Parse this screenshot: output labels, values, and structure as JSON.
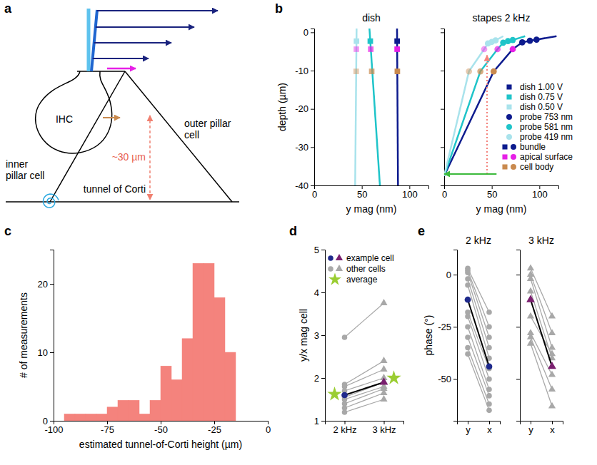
{
  "panel_labels": [
    "a",
    "b",
    "c",
    "d",
    "e"
  ],
  "diagram": {
    "ihc": "IHC",
    "outer_pillar": "outer pillar cell",
    "inner_pillar": "inner pillar cell",
    "tunnel": "tunnel of Corti",
    "height": "~30 µm"
  },
  "chart_data": [
    {
      "type": "line",
      "title": "dish",
      "xlabel": "y mag (nm)",
      "ylabel": "depth (µm)",
      "xlim": [
        0,
        120
      ],
      "xticks": [
        0,
        50,
        100
      ],
      "ylim": [
        -40,
        1
      ],
      "yticks": [
        -40,
        -30,
        -20,
        -10,
        0
      ],
      "marker": "square",
      "series": [
        {
          "name": "dish 1.00 V",
          "color": "#0d1b8e",
          "line": {
            "x": [
              87,
              88
            ],
            "y": [
              1,
              -40
            ]
          },
          "points": [
            {
              "x": [
                87.1
              ],
              "y": [
                -2.3
              ]
            },
            {
              "x": [
                87.1
              ],
              "y": [
                -4.4
              ]
            },
            {
              "x": [
                87.3
              ],
              "y": [
                -10.2
              ]
            }
          ]
        },
        {
          "name": "dish 0.75 V",
          "color": "#1fc4c9",
          "line": {
            "x": [
              58,
              69
            ],
            "y": [
              1,
              -40
            ]
          },
          "points": [
            {
              "x": [
                58.9
              ],
              "y": [
                -2.3
              ]
            },
            {
              "x": [
                59.4
              ],
              "y": [
                -4.4
              ]
            },
            {
              "x": [
                60.4
              ],
              "y": [
                -10.2
              ]
            }
          ]
        },
        {
          "name": "dish 0.50 V",
          "color": "#a9e3ec",
          "line": {
            "x": [
              44.5,
              43
            ],
            "y": [
              1,
              -40
            ]
          },
          "points": [
            {
              "x": [
                44.4
              ],
              "y": [
                -2.3
              ]
            },
            {
              "x": [
                44.3
              ],
              "y": [
                -4.4
              ]
            },
            {
              "x": [
                44.1
              ],
              "y": [
                -10.2
              ]
            }
          ]
        }
      ]
    },
    {
      "type": "line",
      "title": "stapes 2 kHz",
      "xlabel": "y mag (nm)",
      "xlim": [
        0,
        120
      ],
      "xticks": [
        0,
        50,
        100
      ],
      "ylim": [
        -40,
        1
      ],
      "yticks": [
        -40,
        -30,
        -20,
        -10,
        0
      ],
      "tick_labels": "x",
      "marker": "circle",
      "legend": "lower right",
      "series": [
        {
          "name": "probe 753 nm",
          "color": "#0d1b8e",
          "line": {
            "x": [
              0,
              52,
              72,
              82,
              90,
              97,
              118
            ],
            "y": [
              -37.5,
              -10.2,
              -4.4,
              -2.6,
              -2.2,
              -1.9,
              -1
            ]
          },
          "points": [
            {
              "x": [
                82,
                90,
                97
              ],
              "y": [
                -2.6,
                -2.2,
                -1.9
              ]
            },
            {
              "x": [
                72
              ],
              "y": [
                -4.4
              ]
            },
            {
              "x": [
                52
              ],
              "y": [
                -10.2
              ]
            }
          ]
        },
        {
          "name": "probe 581 nm",
          "color": "#1fc4c9",
          "line": {
            "x": [
              0,
              38,
              56,
              62,
              67,
              72,
              85
            ],
            "y": [
              -37.5,
              -10.2,
              -4.4,
              -2.7,
              -2.3,
              -2,
              -1
            ]
          },
          "points": [
            {
              "x": [
                62,
                67,
                72
              ],
              "y": [
                -2.7,
                -2.3,
                -2
              ]
            },
            {
              "x": [
                56
              ],
              "y": [
                -4.4
              ]
            },
            {
              "x": [
                38
              ],
              "y": [
                -10.2
              ]
            }
          ]
        },
        {
          "name": "probe 419 nm",
          "color": "#a9e3ec",
          "line": {
            "x": [
              0,
              26,
              42,
              46,
              50,
              54,
              62
            ],
            "y": [
              -37.5,
              -10.2,
              -4.4,
              -2.9,
              -2.5,
              -2.1,
              -1
            ]
          },
          "points": [
            {
              "x": [
                46,
                50,
                54
              ],
              "y": [
                -2.9,
                -2.5,
                -2.1
              ]
            },
            {
              "x": [
                42
              ],
              "y": [
                -4.4
              ]
            },
            {
              "x": [
                26
              ],
              "y": [
                -10.2
              ]
            }
          ]
        }
      ],
      "point_groups": [
        {
          "name": "bundle",
          "color": "#0d1b8e"
        },
        {
          "name": "apical surface",
          "color": "#e620e6"
        },
        {
          "name": "cell body",
          "color": "#c98a4f"
        }
      ],
      "arrows": [
        {
          "x": [
            45,
            45
          ],
          "y": [
            -37,
            -6
          ],
          "color": "#f4837d",
          "line_style": "dotted"
        },
        {
          "x": [
            55,
            0
          ],
          "y": [
            -37,
            -37
          ],
          "color": "#3cba3c",
          "line_style": "solid"
        }
      ]
    },
    {
      "type": "histogram",
      "xlabel": "estimated tunnel-of-Corti height (µm)",
      "ylabel": "# of measurements",
      "bins": [
        -95,
        -90,
        -85,
        -80,
        -75,
        -70,
        -65,
        -60,
        -55,
        -50,
        -45,
        -40,
        -35,
        -30,
        -25,
        -20,
        -15
      ],
      "counts": [
        1,
        1,
        1,
        1,
        2,
        3,
        3,
        1,
        3,
        8,
        6,
        12,
        23,
        23,
        18,
        10
      ],
      "color": "#f4837d",
      "xlim": [
        -100,
        0
      ],
      "xticks": [
        -100,
        -75,
        -50,
        -25,
        0
      ],
      "ylim": [
        0,
        25
      ],
      "yticks": [
        0,
        10,
        20
      ]
    },
    {
      "type": "line",
      "ylabel": "y/x mag cell",
      "categories": [
        "2 kHz",
        "3 kHz"
      ],
      "ylim": [
        1,
        5
      ],
      "yticks": [
        1,
        2,
        3,
        4,
        5
      ],
      "legend": "upper left",
      "series": [
        {
          "name": "example cell",
          "color": "#000000",
          "colors": [
            "#1f2a8c",
            "#7a1f6f"
          ],
          "values": [
            1.6,
            1.9
          ]
        },
        {
          "name": "other cells",
          "color": "#a8a8a8",
          "cells": [
            [
              1.2,
              1.5
            ],
            [
              1.3,
              1.65
            ],
            [
              1.4,
              1.75
            ],
            [
              1.5,
              1.8
            ],
            [
              1.55,
              1.9
            ],
            [
              1.7,
              2.0
            ],
            [
              1.8,
              2.2
            ],
            [
              1.85,
              2.4
            ],
            [
              2.95,
              3.75
            ]
          ]
        },
        {
          "name": "average",
          "color": "#9acd32",
          "marker": "star",
          "line_style": "none",
          "values": [
            1.62,
            2.0
          ]
        }
      ]
    },
    {
      "type": "line",
      "title": "2 kHz",
      "ylabel": "phase (°)",
      "categories": [
        "y",
        "x"
      ],
      "ylim": [
        -70,
        12
      ],
      "yticks": [
        -50,
        -25,
        0
      ],
      "marker": "circle",
      "series": [
        {
          "color": "#a8a8a8",
          "cells": [
            [
              3,
              -18
            ],
            [
              2,
              -25
            ],
            [
              1,
              -30
            ],
            [
              -2,
              -35
            ],
            [
              -5,
              -40
            ],
            [
              -18,
              -45
            ],
            [
              -20,
              -50
            ],
            [
              -25,
              -55
            ],
            [
              -30,
              -58
            ],
            [
              -35,
              -62
            ],
            [
              -38,
              -65
            ]
          ]
        },
        {
          "color": "#000000",
          "colors": [
            "#1f2a8c",
            "#1f2a8c"
          ],
          "values": [
            -12,
            -44
          ]
        }
      ]
    },
    {
      "type": "line",
      "title": "3 kHz",
      "categories": [
        "y",
        "x"
      ],
      "ylim": [
        -70,
        12
      ],
      "yticks": [
        -50,
        -25,
        0
      ],
      "marker": "triangle",
      "tick_labels": "x",
      "series": [
        {
          "color": "#a8a8a8",
          "cells": [
            [
              3,
              -20
            ],
            [
              0,
              -28
            ],
            [
              -2,
              -35
            ],
            [
              -8,
              -40
            ],
            [
              -20,
              -38
            ],
            [
              -28,
              -48
            ],
            [
              -30,
              -55
            ],
            [
              -33,
              -63
            ]
          ]
        },
        {
          "color": "#000000",
          "colors": [
            "#7a1f6f",
            "#7a1f6f"
          ],
          "values": [
            -12,
            -44
          ]
        }
      ]
    }
  ]
}
